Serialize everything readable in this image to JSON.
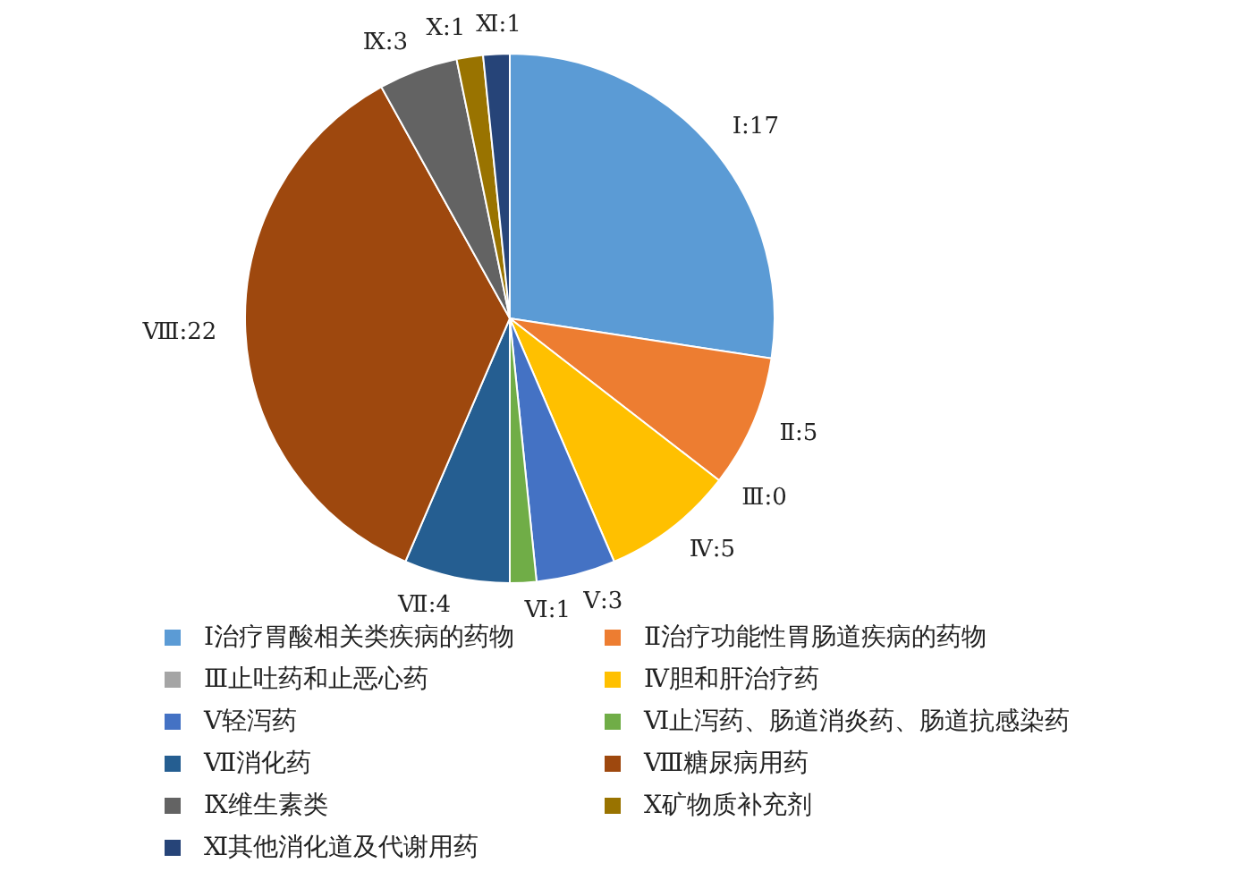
{
  "chart_data": {
    "type": "pie",
    "categories": [
      "Ⅰ治疗胃酸相关类疾病的药物",
      "Ⅱ治疗功能性胃肠道疾病的药物",
      "Ⅲ止吐药和止恶心药",
      "Ⅳ胆和肝治疗药",
      "Ⅴ轻泻药",
      "Ⅵ止泻药、肠道消炎药、肠道抗感染药",
      "Ⅶ消化药",
      "Ⅷ糖尿病用药",
      "Ⅸ维生素类",
      "Ⅹ矿物质补充剂",
      "Ⅺ其他消化道及代谢用药"
    ],
    "values": [
      17,
      5,
      0,
      5,
      3,
      1,
      4,
      22,
      3,
      1,
      1
    ],
    "value_labels": [
      "Ⅰ:17",
      "Ⅱ:5",
      "Ⅲ:0",
      "Ⅳ:5",
      "Ⅴ:3",
      "Ⅵ:1",
      "Ⅶ:4",
      "Ⅷ:22",
      "Ⅸ:3",
      "Ⅹ:1",
      "Ⅺ:1"
    ],
    "colors": [
      "#5b9bd5",
      "#ed7d31",
      "#a5a5a5",
      "#ffc000",
      "#4472c4",
      "#70ad47",
      "#255e91",
      "#9e480e",
      "#636363",
      "#997300",
      "#264478"
    ],
    "legend": "bottom"
  }
}
